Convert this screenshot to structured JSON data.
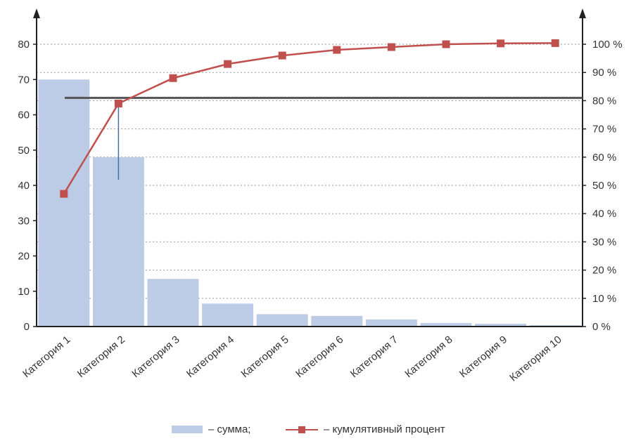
{
  "chart_data": {
    "type": "bar",
    "categories": [
      "Категория 1",
      "Категория 2",
      "Категория 3",
      "Категория 4",
      "Категория 5",
      "Категория 6",
      "Категория 7",
      "Категория 8",
      "Категория 9",
      "Категория 10"
    ],
    "series": [
      {
        "name": "– сумма;",
        "type": "bar",
        "axis": "left",
        "color": "#bccbe6",
        "values": [
          70,
          48,
          13.5,
          6.5,
          3.5,
          3,
          2,
          1,
          0.8,
          0.4
        ]
      },
      {
        "name": "– кумулятивный процент",
        "type": "line",
        "axis": "right",
        "color": "#c0504d",
        "values": [
          47,
          79,
          88,
          93,
          96,
          98,
          99,
          100,
          100.3,
          100.4
        ]
      }
    ],
    "y_left": {
      "ticks": [
        "0",
        "10",
        "20",
        "30",
        "40",
        "50",
        "60",
        "70",
        "80"
      ],
      "ylim": [
        0,
        80
      ]
    },
    "y_right": {
      "ticks": [
        "0 %",
        "10 %",
        "20 %",
        "30 %",
        "40 %",
        "50 %",
        "60 %",
        "70 %",
        "80 %",
        "90 %",
        "100 %"
      ],
      "ylim": [
        0,
        100
      ]
    },
    "reference_line": {
      "axis": "right",
      "value": 81,
      "color": "#555555"
    },
    "grid": "dotted horizontal at right-axis ticks",
    "legend": "bottom-center"
  }
}
